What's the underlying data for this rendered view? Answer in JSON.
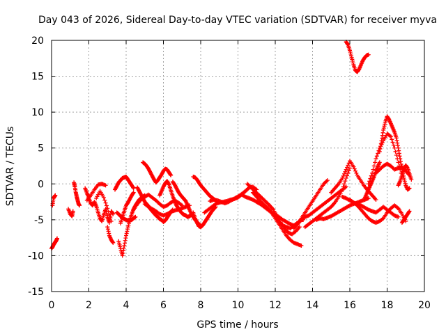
{
  "chart_data": {
    "type": "scatter",
    "title": "Day 043 of 2026, Sidereal Day-to-day VTEC variation (SDTVAR) for receiver myva",
    "xlabel": "GPS time / hours",
    "ylabel": "SDTVAR / TECUs",
    "xlim": [
      0,
      20
    ],
    "ylim": [
      -15,
      20
    ],
    "xticks": [
      "0",
      "2",
      "4",
      "6",
      "8",
      "10",
      "12",
      "14",
      "16",
      "18",
      "20"
    ],
    "yticks": [
      "-15",
      "-10",
      "-5",
      "0",
      "5",
      "10",
      "15",
      "20"
    ],
    "grid": true,
    "marker": "+",
    "series_color": "#ff0000",
    "series": [
      {
        "name": "a0",
        "x": [
          0.0,
          0.05,
          0.1,
          0.15,
          0.2,
          0.25,
          0.3
        ],
        "y": [
          -9,
          -8.8,
          -8.5,
          -8.3,
          -8.1,
          -7.9,
          -7.6
        ]
      },
      {
        "name": "a1",
        "x": [
          0.05,
          0.1,
          0.15,
          0.2
        ],
        "y": [
          -3,
          -2,
          -1.8,
          -1.6
        ]
      },
      {
        "name": "a2",
        "x": [
          0.9,
          1.0,
          1.1,
          1.15
        ],
        "y": [
          -3.5,
          -4.2,
          -4.5,
          -3.8
        ]
      },
      {
        "name": "a3",
        "x": [
          1.2,
          1.25,
          1.3,
          1.35,
          1.4,
          1.45,
          1.5
        ],
        "y": [
          0.2,
          -0.4,
          -1.2,
          -1.8,
          -2.3,
          -2.8,
          -3.0
        ]
      },
      {
        "name": "a4",
        "x": [
          1.8,
          1.9,
          2.0,
          2.1,
          2.2,
          2.3,
          2.4,
          2.5,
          2.6,
          2.7,
          2.8,
          2.9,
          3.0,
          3.1,
          3.2,
          3.3
        ],
        "y": [
          -0.6,
          -1.3,
          -2.0,
          -2.7,
          -3.0,
          -2.5,
          -3.1,
          -4.0,
          -4.8,
          -5.2,
          -4.3,
          -3.5,
          -4.7,
          -5.4,
          -3.8,
          -4.2
        ]
      },
      {
        "name": "a5",
        "x": [
          1.9,
          2.1,
          2.3,
          2.5,
          2.7,
          2.9
        ],
        "y": [
          -2.3,
          -1.6,
          -0.8,
          -0.1,
          0.0,
          -0.2
        ]
      },
      {
        "name": "a6",
        "x": [
          2.4,
          2.6,
          2.8,
          3.0,
          3.2
        ],
        "y": [
          -2.0,
          -1.0,
          -1.9,
          -3.4,
          -5.2
        ]
      },
      {
        "name": "a7",
        "x": [
          3.0,
          3.1,
          3.2,
          3.3
        ],
        "y": [
          -6.0,
          -7.2,
          -7.8,
          -8.2
        ]
      },
      {
        "name": "a8",
        "x": [
          3.4,
          3.5,
          3.6,
          3.7,
          3.8,
          3.9,
          4.0,
          4.1,
          4.2,
          4.3,
          4.4
        ],
        "y": [
          -0.8,
          -0.3,
          0.2,
          0.5,
          0.8,
          0.9,
          1.0,
          0.6,
          0.2,
          -0.2,
          -0.6
        ]
      },
      {
        "name": "a9",
        "x": [
          3.6,
          3.7,
          3.8,
          3.9,
          4.0,
          4.1,
          4.2,
          4.3,
          4.4,
          4.5,
          4.6,
          4.7,
          4.8,
          4.9,
          5.0
        ],
        "y": [
          -8.0,
          -9.0,
          -10.0,
          -8.6,
          -7.2,
          -6.0,
          -5.0,
          -4.2,
          -3.5,
          -3.0,
          -2.6,
          -2.2,
          -2.0,
          -1.8,
          -1.6
        ]
      },
      {
        "name": "a10",
        "x": [
          3.7,
          3.8,
          3.9,
          4.0,
          4.1,
          4.2,
          4.3,
          4.4
        ],
        "y": [
          -5.5,
          -4.6,
          -3.8,
          -3.0,
          -2.6,
          -2.1,
          -1.6,
          -1.2
        ]
      },
      {
        "name": "a11",
        "x": [
          3.5,
          3.6,
          3.7,
          3.8,
          3.9,
          4.0,
          4.1,
          4.2,
          4.3,
          4.4,
          4.5
        ],
        "y": [
          -4.0,
          -4.2,
          -4.5,
          -4.7,
          -4.9,
          -5.0,
          -5.1,
          -5.1,
          -5.0,
          -4.8,
          -4.6
        ]
      },
      {
        "name": "a12",
        "x": [
          4.4,
          4.6,
          4.8,
          5.0,
          5.2,
          5.4,
          5.6,
          5.8,
          6.0,
          6.2,
          6.4,
          6.6,
          6.8,
          7.0
        ],
        "y": [
          -3.6,
          -2.8,
          -2.2,
          -1.8,
          -1.5,
          -1.9,
          -2.3,
          -2.8,
          -3.2,
          -3.0,
          -2.6,
          -2.3,
          -2.6,
          -3.0
        ]
      },
      {
        "name": "a13",
        "x": [
          4.6,
          4.7,
          4.8,
          4.9,
          5.0,
          5.1,
          5.2,
          5.3,
          5.4,
          5.5,
          5.6,
          5.7,
          5.8,
          5.9,
          6.0,
          6.1,
          6.2,
          6.3,
          6.4,
          6.5
        ],
        "y": [
          -0.5,
          -1.0,
          -1.5,
          -2.0,
          -2.5,
          -2.8,
          -3.1,
          -3.5,
          -3.8,
          -4.1,
          -4.4,
          -4.6,
          -4.9,
          -5.0,
          -5.3,
          -5.1,
          -4.7,
          -4.3,
          -3.9,
          -3.6
        ]
      },
      {
        "name": "a14",
        "x": [
          4.9,
          5.0,
          5.1,
          5.2,
          5.3,
          5.4,
          5.5,
          5.6,
          5.7,
          5.8,
          5.9,
          6.0,
          6.1,
          6.2,
          6.3,
          6.4
        ],
        "y": [
          3.0,
          2.8,
          2.5,
          2.1,
          1.6,
          1.1,
          0.6,
          0.2,
          0.5,
          0.9,
          1.3,
          1.8,
          2.1,
          2.0,
          1.6,
          1.2
        ]
      },
      {
        "name": "a15",
        "x": [
          5.8,
          5.9,
          6.0,
          6.1,
          6.2,
          6.3,
          6.4,
          6.5,
          6.6,
          6.7,
          6.8,
          6.9,
          7.0,
          7.1,
          7.2,
          7.3,
          7.4,
          7.5
        ],
        "y": [
          -1.6,
          -1.0,
          -0.4,
          0.1,
          0.4,
          -0.1,
          -0.9,
          -1.7,
          -2.4,
          -3.0,
          -3.4,
          -3.8,
          -4.1,
          -4.3,
          -4.4,
          -4.6,
          -4.5,
          -4.3
        ]
      },
      {
        "name": "a16",
        "x": [
          5.0,
          5.2,
          5.4,
          5.6,
          5.8,
          6.0,
          6.2,
          6.4,
          6.6,
          6.8,
          7.0,
          7.2,
          7.4
        ],
        "y": [
          -2.8,
          -3.2,
          -3.5,
          -3.8,
          -4.2,
          -4.4,
          -4.2,
          -3.9,
          -3.7,
          -3.6,
          -3.4,
          -3.2,
          -3.0
        ]
      },
      {
        "name": "a17",
        "x": [
          6.5,
          6.6,
          6.7,
          6.8,
          6.9,
          7.0,
          7.1,
          7.2,
          7.3,
          7.4,
          7.5,
          7.6,
          7.7,
          7.8,
          7.9,
          8.0
        ],
        "y": [
          0.3,
          -0.1,
          -0.6,
          -1.1,
          -1.5,
          -1.8,
          -2.1,
          -2.4,
          -3.0,
          -3.6,
          -4.2,
          -4.6,
          -5.0,
          -5.3,
          -5.6,
          -5.8
        ]
      },
      {
        "name": "a18",
        "x": [
          7.6,
          7.7,
          7.8,
          7.9,
          8.0,
          8.1,
          8.2,
          8.3,
          8.4,
          8.5,
          8.6,
          8.7,
          8.8,
          8.9,
          9.0
        ],
        "y": [
          1.0,
          0.9,
          0.6,
          0.2,
          -0.2,
          -0.5,
          -0.8,
          -1.1,
          -1.4,
          -1.7,
          -1.9,
          -2.1,
          -2.3,
          -2.5,
          -2.6
        ]
      },
      {
        "name": "a19",
        "x": [
          7.6,
          7.7,
          7.8,
          7.9,
          8.0,
          8.1,
          8.2,
          8.3,
          8.4,
          8.5,
          8.6,
          8.7,
          8.8
        ],
        "y": [
          -4.0,
          -4.8,
          -5.4,
          -5.9,
          -6.0,
          -5.8,
          -5.4,
          -5.0,
          -4.6,
          -4.2,
          -3.8,
          -3.5,
          -3.2
        ]
      },
      {
        "name": "a20",
        "x": [
          8.2,
          8.4,
          8.6,
          8.8,
          9.0,
          9.2,
          9.4,
          9.6,
          9.8,
          10.0,
          10.2,
          10.4,
          10.6,
          10.8,
          11.0
        ],
        "y": [
          -4.0,
          -3.6,
          -3.2,
          -2.8,
          -2.6,
          -2.5,
          -2.4,
          -2.2,
          -2.1,
          -1.9,
          -1.5,
          -1.0,
          -0.5,
          -0.4,
          -0.8
        ]
      },
      {
        "name": "a21",
        "x": [
          8.5,
          8.7,
          8.9,
          9.1,
          9.3,
          9.5,
          9.7,
          9.9,
          10.1,
          10.3,
          10.5
        ],
        "y": [
          -2.4,
          -2.2,
          -2.3,
          -2.5,
          -2.7,
          -2.5,
          -2.2,
          -1.9,
          -1.6,
          -1.2,
          -0.8
        ]
      },
      {
        "name": "a22",
        "x": [
          10.2,
          10.4,
          10.6,
          10.8,
          11.0,
          11.2,
          11.4,
          11.6,
          11.8,
          12.0,
          12.2,
          12.4,
          12.6,
          12.8,
          13.0,
          13.2,
          13.4,
          13.5
        ],
        "y": [
          -1.5,
          -1.8,
          -2.0,
          -2.2,
          -2.5,
          -2.8,
          -3.0,
          -3.4,
          -4.0,
          -4.6,
          -5.2,
          -5.8,
          -6.0,
          -6.2,
          -5.8,
          -5.4,
          -5.0,
          -5.0
        ]
      },
      {
        "name": "a23",
        "x": [
          10.5,
          10.7,
          10.9,
          11.1,
          11.3,
          11.5,
          11.7,
          11.9,
          12.1,
          12.3,
          12.5,
          12.7,
          12.9,
          13.1,
          13.3
        ],
        "y": [
          0.0,
          -0.5,
          -1.0,
          -1.5,
          -2.0,
          -2.5,
          -3.0,
          -3.6,
          -4.5,
          -5.4,
          -6.2,
          -6.8,
          -7.0,
          -6.6,
          -6.0
        ]
      },
      {
        "name": "a24",
        "x": [
          10.8,
          11.0,
          11.2,
          11.4,
          11.6,
          11.8,
          12.0,
          12.2,
          12.4,
          12.6,
          12.8,
          13.0,
          13.2,
          13.4
        ],
        "y": [
          -1.2,
          -1.8,
          -2.4,
          -2.9,
          -3.4,
          -4.0,
          -4.8,
          -5.6,
          -6.4,
          -7.2,
          -7.8,
          -8.2,
          -8.4,
          -8.6
        ]
      },
      {
        "name": "a25",
        "x": [
          11.0,
          11.2,
          11.4,
          11.6,
          11.8,
          12.0,
          12.2,
          12.4,
          12.6,
          12.8,
          13.0
        ],
        "y": [
          -2.5,
          -2.8,
          -3.2,
          -3.6,
          -4.0,
          -4.3,
          -4.6,
          -5.0,
          -5.3,
          -5.6,
          -5.8
        ]
      },
      {
        "name": "a26",
        "x": [
          13.0,
          13.2,
          13.4,
          13.6,
          13.8,
          14.0,
          14.2,
          14.4,
          14.6,
          14.8
        ],
        "y": [
          -6.2,
          -5.6,
          -4.8,
          -4.0,
          -3.2,
          -2.4,
          -1.6,
          -0.8,
          0.0,
          0.5
        ]
      },
      {
        "name": "a27",
        "x": [
          13.2,
          13.4,
          13.6,
          13.8,
          14.0,
          14.2,
          14.4,
          14.6,
          14.8,
          15.0,
          15.2,
          15.4,
          15.6,
          15.8
        ],
        "y": [
          -5.6,
          -5.0,
          -4.6,
          -4.4,
          -4.0,
          -3.6,
          -3.2,
          -2.8,
          -2.4,
          -2.0,
          -1.6,
          -1.2,
          -0.8,
          -0.4
        ]
      },
      {
        "name": "a28",
        "x": [
          13.6,
          13.8,
          14.0,
          14.2,
          14.4,
          14.6,
          14.8,
          15.0,
          15.2,
          15.4,
          15.6,
          15.8,
          16.0
        ],
        "y": [
          -6.0,
          -5.6,
          -5.2,
          -4.8,
          -4.4,
          -4.0,
          -3.6,
          -3.2,
          -2.6,
          -1.8,
          -0.8,
          0.8,
          2.2
        ]
      },
      {
        "name": "a29",
        "x": [
          14.2,
          14.4,
          14.6,
          14.8,
          15.0,
          15.2,
          15.4,
          15.6,
          15.8,
          16.0,
          16.2,
          16.4,
          16.6,
          16.8,
          17.0
        ],
        "y": [
          -5.0,
          -4.8,
          -4.9,
          -4.7,
          -4.5,
          -4.2,
          -3.9,
          -3.6,
          -3.3,
          -3.0,
          -2.8,
          -2.6,
          -2.4,
          -2.2,
          -2.0
        ]
      },
      {
        "name": "a30",
        "x": [
          15.0,
          15.2,
          15.4,
          15.6,
          15.8,
          16.0,
          16.2,
          16.4,
          16.6,
          16.8,
          17.0,
          17.2,
          17.4
        ],
        "y": [
          -1.2,
          -0.6,
          0.0,
          0.8,
          2.0,
          3.2,
          2.4,
          1.2,
          0.4,
          -0.4,
          -1.0,
          -1.6,
          -2.2
        ]
      },
      {
        "name": "a31",
        "x": [
          15.6,
          15.8,
          16.0,
          16.2,
          16.4,
          16.6,
          16.8,
          17.0,
          17.2,
          17.4,
          17.6,
          17.8,
          18.0,
          18.2,
          18.4,
          18.6
        ],
        "y": [
          -1.8,
          -2.0,
          -2.3,
          -2.6,
          -2.8,
          -3.0,
          -3.3,
          -3.6,
          -3.8,
          -4.0,
          -3.6,
          -3.2,
          -3.6,
          -4.0,
          -4.4,
          -4.6
        ]
      },
      {
        "name": "a32",
        "x": [
          16.0,
          16.2,
          16.4,
          16.6,
          16.8,
          17.0,
          17.2,
          17.4,
          17.6,
          17.8,
          18.0,
          18.2,
          18.4,
          18.6,
          18.8,
          19.0
        ],
        "y": [
          -2.2,
          -2.6,
          -3.0,
          -3.6,
          -4.2,
          -4.8,
          -5.2,
          -5.4,
          -5.2,
          -4.8,
          -4.0,
          -3.4,
          -3.0,
          -3.4,
          -4.2,
          -5.2
        ]
      },
      {
        "name": "a33",
        "x": [
          16.8,
          16.9,
          17.0,
          17.1,
          17.2,
          17.3,
          17.4,
          17.5,
          17.6
        ],
        "y": [
          -2.0,
          -1.4,
          -0.8,
          -0.2,
          0.4,
          1.0,
          1.8,
          2.4,
          3.0
        ]
      },
      {
        "name": "a34",
        "x": [
          17.0,
          17.2,
          17.4,
          17.6,
          17.8,
          18.0,
          18.2,
          18.4,
          18.6,
          18.8
        ],
        "y": [
          0.0,
          1.5,
          3.5,
          5.0,
          6.0,
          7.0,
          6.6,
          5.0,
          3.0,
          1.0
        ]
      },
      {
        "name": "a35",
        "x": [
          17.6,
          17.7,
          17.8,
          17.9,
          18.0,
          18.1,
          18.2,
          18.3,
          18.4,
          18.5,
          18.6,
          18.7,
          18.8,
          18.9,
          19.0,
          19.1,
          19.2
        ],
        "y": [
          4.5,
          6.0,
          7.5,
          8.6,
          9.4,
          9.0,
          8.4,
          7.8,
          7.2,
          6.4,
          5.0,
          3.5,
          2.0,
          0.8,
          -0.2,
          -0.8,
          -0.6
        ]
      },
      {
        "name": "a36",
        "x": [
          17.4,
          17.6,
          17.8,
          18.0,
          18.2,
          18.4,
          18.6,
          18.8,
          19.0,
          19.2
        ],
        "y": [
          1.5,
          2.0,
          2.5,
          2.8,
          2.5,
          2.0,
          2.2,
          2.4,
          1.8,
          1.2
        ]
      },
      {
        "name": "a37",
        "x": [
          18.6,
          18.7,
          18.8,
          18.9,
          19.0,
          19.1,
          19.2,
          19.3
        ],
        "y": [
          -0.2,
          0.4,
          1.2,
          2.0,
          2.6,
          2.2,
          1.4,
          0.6
        ]
      },
      {
        "name": "a38",
        "x": [
          18.8,
          18.9,
          19.0,
          19.1,
          19.2
        ],
        "y": [
          -5.4,
          -5.0,
          -4.6,
          -4.2,
          -3.8
        ]
      },
      {
        "name": "a39",
        "x": [
          15.8,
          15.9,
          16.0,
          16.1,
          16.2,
          16.3,
          16.4,
          16.5,
          16.6,
          16.7,
          16.8,
          16.9,
          17.0
        ],
        "y": [
          19.8,
          19.4,
          18.6,
          17.6,
          16.6,
          15.8,
          15.6,
          16.0,
          16.6,
          17.2,
          17.6,
          17.9,
          18.0
        ]
      }
    ]
  }
}
